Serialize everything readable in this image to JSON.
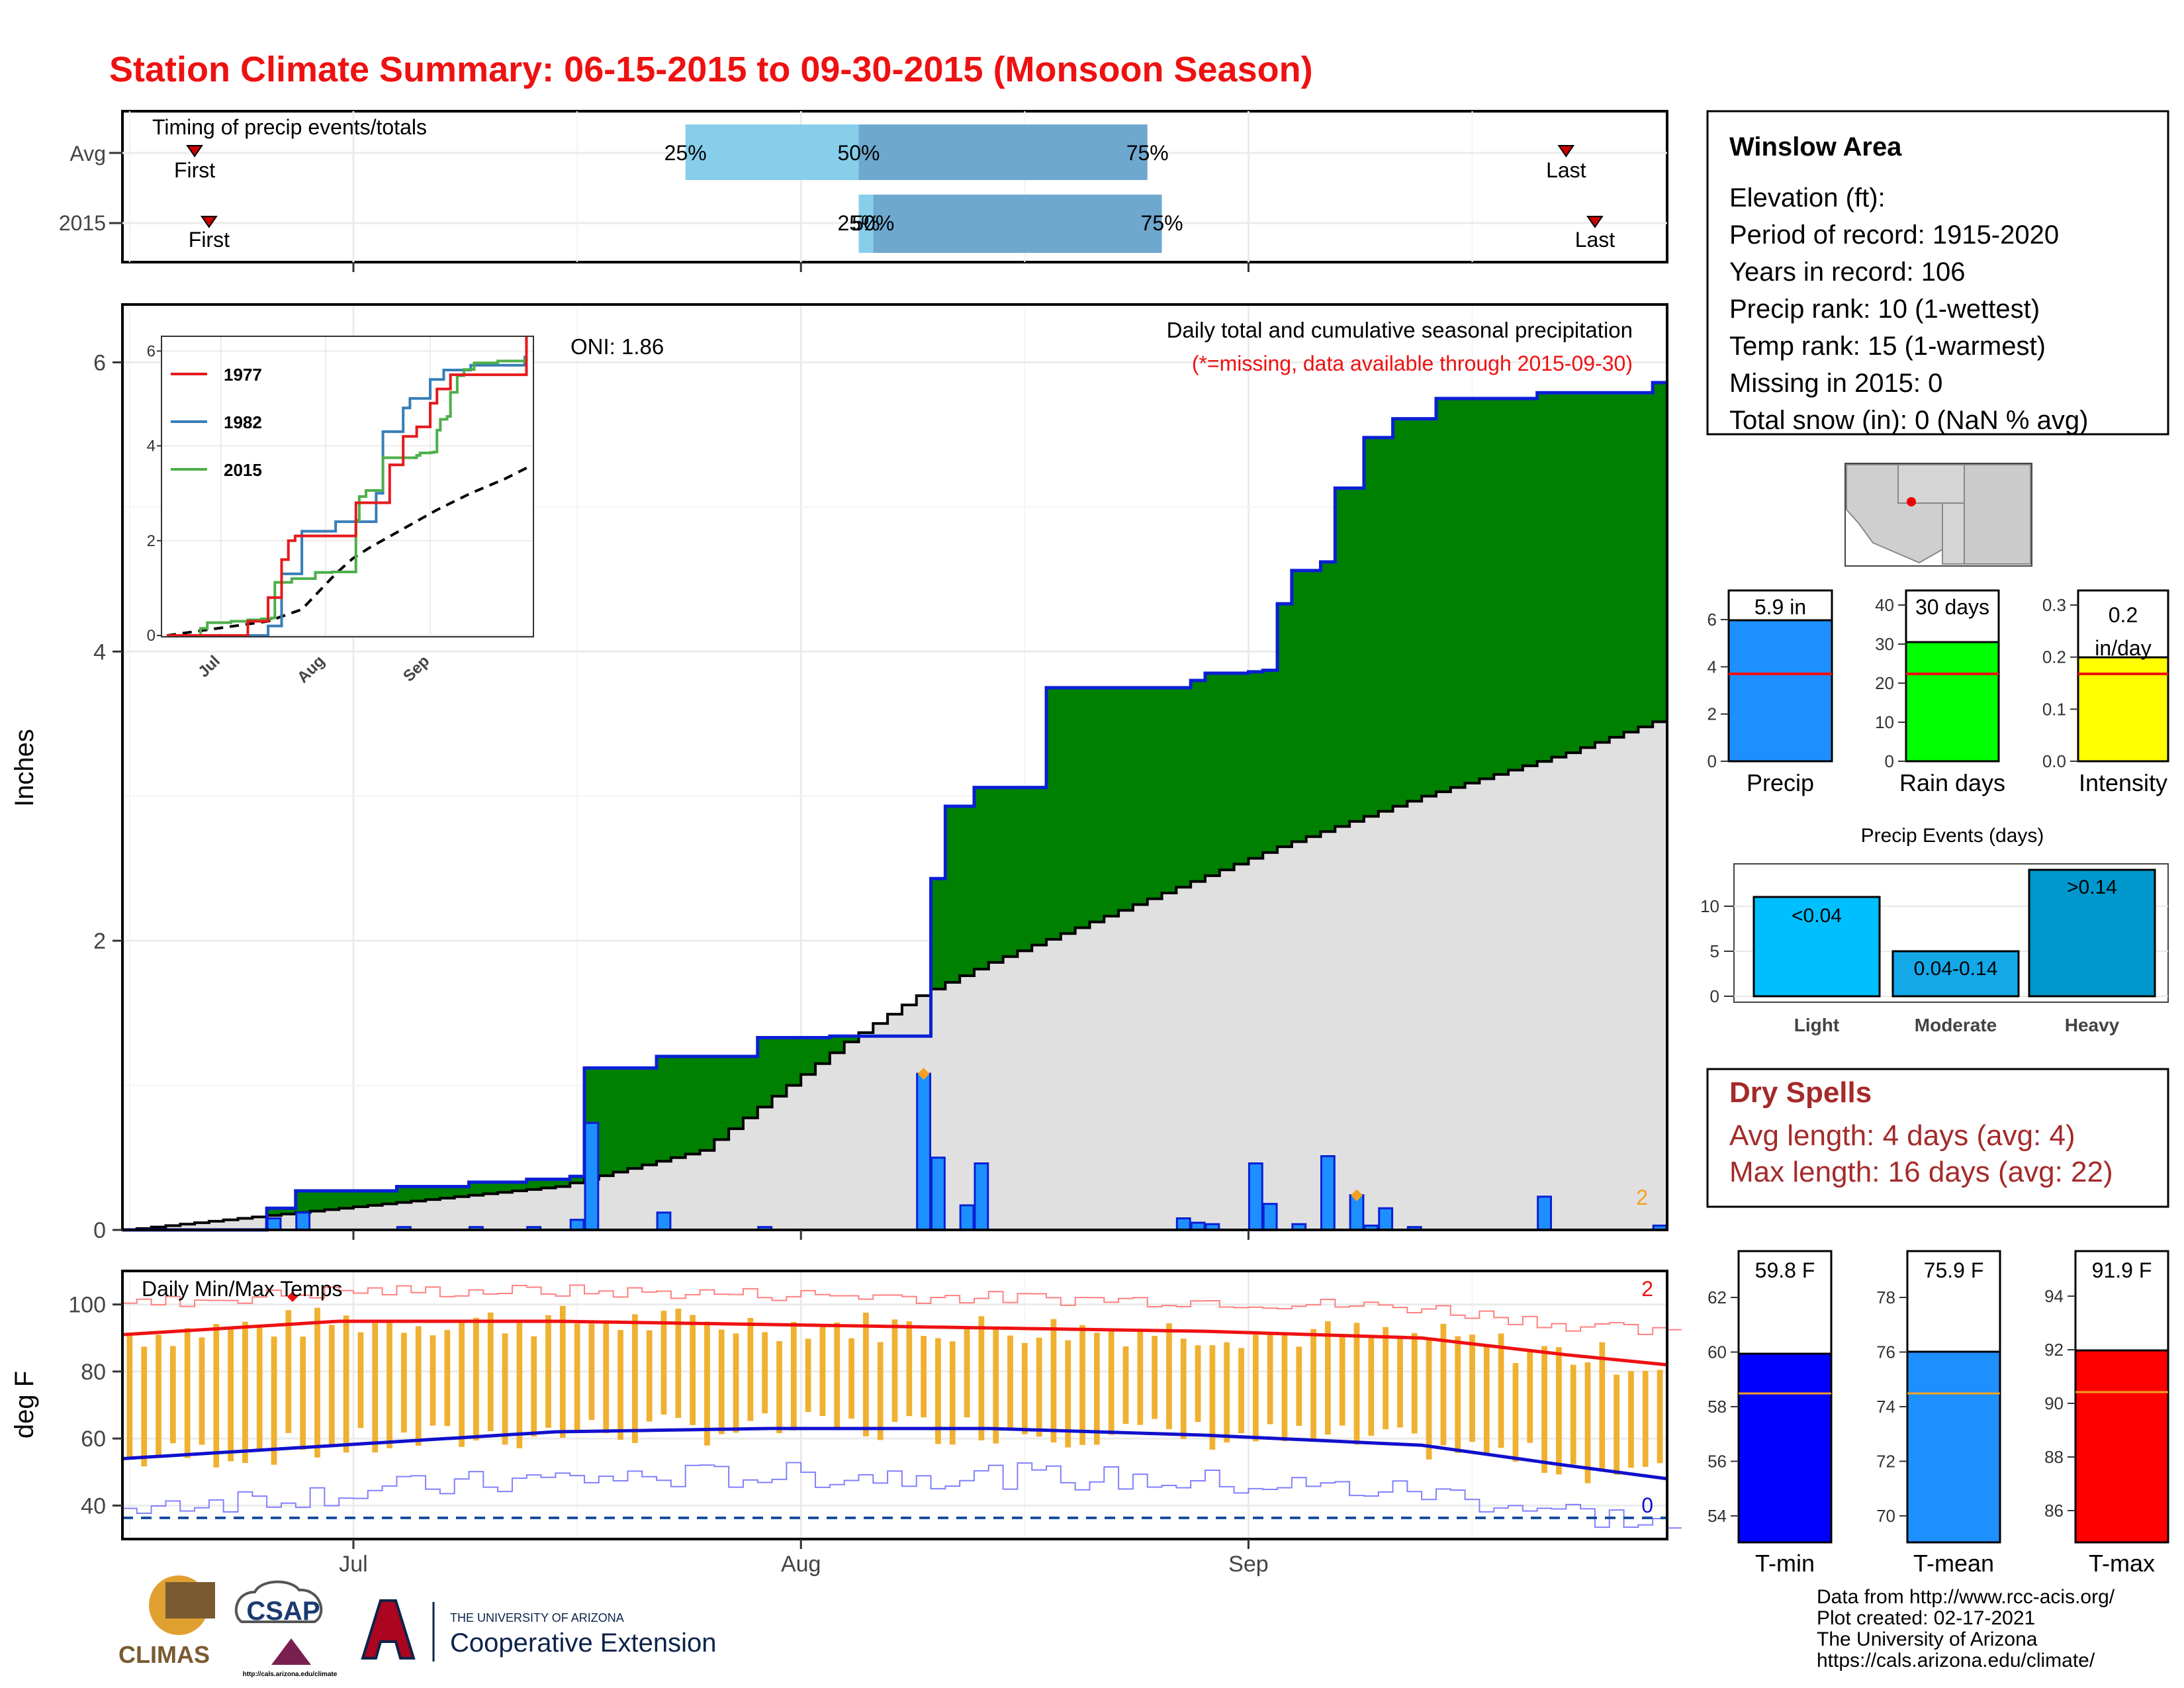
{
  "title": "Station Climate Summary: 06-15-2015 to 09-30-2015 (Monsoon Season)",
  "colors": {
    "title": "#ee1111",
    "cum_2015": "#0a1fd6",
    "above_avg": "#008000",
    "below_avg": "#7a4d0b",
    "avg_fill": "#e0e0e0",
    "daily_bar": "#1e8fff",
    "tmax_avg": "#ee1111",
    "tmin_avg": "#1010cc",
    "temp_range": "#f0b030",
    "dry_spells": "#a52a2a"
  },
  "timing": {
    "title": "Timing of precip events/totals",
    "rows": [
      {
        "label": "Avg",
        "first_label": "First",
        "last_label": "Last",
        "first": "2015-06-20",
        "last": "2015-09-23",
        "p25": "2015-07-24",
        "p50": "2015-08-05",
        "p75": "2015-08-25",
        "p25_label": "25%",
        "p50_label": "50%",
        "p75_label": "75%"
      },
      {
        "label": "2015",
        "first_label": "First",
        "last_label": "Last",
        "first": "2015-06-21",
        "last": "2015-09-25",
        "p25": "2015-08-05",
        "p50": "2015-08-06",
        "p75": "2015-08-26",
        "p25_label": "25%",
        "p50_label": "50%",
        "p75_label": "75%"
      }
    ]
  },
  "precip_panel": {
    "ylabel": "Inches",
    "annotation": "Daily total and cumulative seasonal precipitation",
    "missing_note": "(*=missing, data available through 2015-09-30)",
    "oni": "ONI: 1.86",
    "count_label": "2",
    "yticks": [
      "0",
      "2",
      "4",
      "6"
    ]
  },
  "inset": {
    "yticks": [
      "0",
      "2",
      "4",
      "6"
    ],
    "xticks": [
      "Jul",
      "Aug",
      "Sep"
    ],
    "legend": [
      {
        "name": "1977",
        "color": "#e41a1c"
      },
      {
        "name": "1982",
        "color": "#377eb8"
      },
      {
        "name": "2015",
        "color": "#4daf4a"
      }
    ]
  },
  "temp_panel": {
    "ylabel": "deg F",
    "title": "Daily Min/Max Temps",
    "yticks": [
      "40",
      "60",
      "80",
      "100"
    ],
    "count_max": "2",
    "count_min": "0"
  },
  "xaxis": {
    "ticks": [
      "Jul",
      "Aug",
      "Sep"
    ]
  },
  "station": {
    "name": "Winslow Area",
    "lines": [
      "Elevation (ft):",
      "Period of record: 1915-2020",
      "Years in record: 106",
      "Precip rank: 10 (1-wettest)",
      "Temp rank: 15 (1-warmest)",
      "Missing in 2015: 0",
      "Total snow (in): 0 (NaN % avg)"
    ]
  },
  "summary_bars": [
    {
      "name": "Precip",
      "value_label": "5.9 in",
      "yticks": [
        "0",
        "2",
        "4",
        "6"
      ],
      "color": "#1e8fff"
    },
    {
      "name": "Rain days",
      "value_label": "30 days",
      "yticks": [
        "0",
        "10",
        "20",
        "30",
        "40"
      ],
      "color": "#00ff00"
    },
    {
      "name": "Intensity",
      "value_label": "0.2 in/day",
      "value_label_1": "0.2",
      "value_label_2": "in/day",
      "yticks": [
        "0.0",
        "0.1",
        "0.2",
        "0.3"
      ],
      "color": "#ffff00"
    }
  ],
  "precip_events": {
    "title": "Precip Events (days)",
    "yticks": [
      "0",
      "5",
      "10"
    ],
    "bars": [
      {
        "name": "Light",
        "range": "<0.04",
        "color": "#00bfff"
      },
      {
        "name": "Moderate",
        "range": "0.04-0.14",
        "color": "#14a8e8"
      },
      {
        "name": "Heavy",
        "range": ">0.14",
        "color": "#0098cc"
      }
    ]
  },
  "dry_spells": {
    "title": "Dry Spells",
    "avg_line": "Avg length: 4 days (avg: 4)",
    "max_line": "Max length: 16 days (avg: 22)"
  },
  "temp_bars": [
    {
      "name": "T-min",
      "value_label": "59.8 F",
      "yticks": [
        "54",
        "56",
        "58",
        "60",
        "62"
      ],
      "color": "#0000ff"
    },
    {
      "name": "T-mean",
      "value_label": "75.9 F",
      "yticks": [
        "70",
        "72",
        "74",
        "76",
        "78"
      ],
      "color": "#1e8fff"
    },
    {
      "name": "T-max",
      "value_label": "91.9 F",
      "yticks": [
        "86",
        "88",
        "90",
        "92",
        "94"
      ],
      "color": "#ff0000"
    }
  ],
  "footer": {
    "lines": [
      "Data from http://www.rcc-acis.org/",
      "Plot created: 02-17-2021",
      "The University of Arizona",
      "https://cals.arizona.edu/climate/"
    ],
    "logos": {
      "climas": "CLIMAS",
      "csap": "CSAP",
      "csap_url": "http://cals.arizona.edu/climate",
      "ua_header": "THE UNIVERSITY OF ARIZONA",
      "ua_name": "Cooperative Extension"
    }
  },
  "chart_data": {
    "type": "area",
    "x_range": [
      "2015-06-15",
      "2015-09-30"
    ],
    "ylim": [
      0,
      6.4
    ],
    "ylabel": "Inches",
    "series": [
      {
        "name": "2015 cumulative precipitation",
        "x_day_offsets_from_jun15": [
          0,
          10,
          12,
          19,
          24,
          28,
          31,
          32,
          37,
          44,
          49,
          50,
          51,
          52,
          55,
          56,
          57,
          59,
          64,
          73,
          74,
          75,
          77,
          78,
          79,
          80,
          81,
          83,
          84,
          86,
          88,
          91,
          98,
          106
        ],
        "values": [
          0,
          0.15,
          0.27,
          0.3,
          0.33,
          0.35,
          0.37,
          1.12,
          1.2,
          1.33,
          1.34,
          1.34,
          1.34,
          1.34,
          1.34,
          2.43,
          2.93,
          3.06,
          3.75,
          3.75,
          3.8,
          3.85,
          3.85,
          3.86,
          3.87,
          4.33,
          4.56,
          4.62,
          5.13,
          5.48,
          5.61,
          5.75,
          5.79,
          5.86
        ]
      },
      {
        "name": "Average cumulative precipitation",
        "x_day_offsets_from_jun15": [
          0,
          10,
          20,
          30,
          40,
          50,
          55,
          60,
          70,
          80,
          90,
          100,
          107
        ],
        "values": [
          0,
          0.1,
          0.2,
          0.3,
          0.55,
          1.3,
          1.62,
          1.85,
          2.25,
          2.65,
          3.0,
          3.3,
          3.55
        ]
      }
    ],
    "daily_precip": {
      "x_day_offsets_from_jun15": [
        10,
        12,
        19,
        24,
        28,
        31,
        32,
        37,
        44,
        55,
        56,
        58,
        59,
        73,
        74,
        75,
        78,
        79,
        81,
        83,
        85,
        86,
        87,
        89,
        98,
        106
      ],
      "values": [
        0.08,
        0.12,
        0.02,
        0.02,
        0.02,
        0.07,
        0.74,
        0.12,
        0.02,
        1.08,
        0.5,
        0.17,
        0.46,
        0.08,
        0.05,
        0.04,
        0.46,
        0.18,
        0.04,
        0.51,
        0.24,
        0.03,
        0.15,
        0.02,
        0.23,
        0.03
      ]
    },
    "temperatures": {
      "ylim": [
        30,
        110
      ],
      "avg_tmax": {
        "x_day_offsets_from_jun15": [
          0,
          15,
          30,
          45,
          60,
          75,
          90,
          100,
          107
        ],
        "values": [
          91,
          95,
          95,
          94,
          93,
          92,
          90,
          85,
          82
        ]
      },
      "avg_tmin": {
        "x_day_offsets_from_jun15": [
          0,
          15,
          30,
          45,
          60,
          75,
          90,
          100,
          107
        ],
        "values": [
          54,
          58,
          62,
          63,
          63,
          61,
          58,
          52,
          48
        ]
      }
    }
  }
}
